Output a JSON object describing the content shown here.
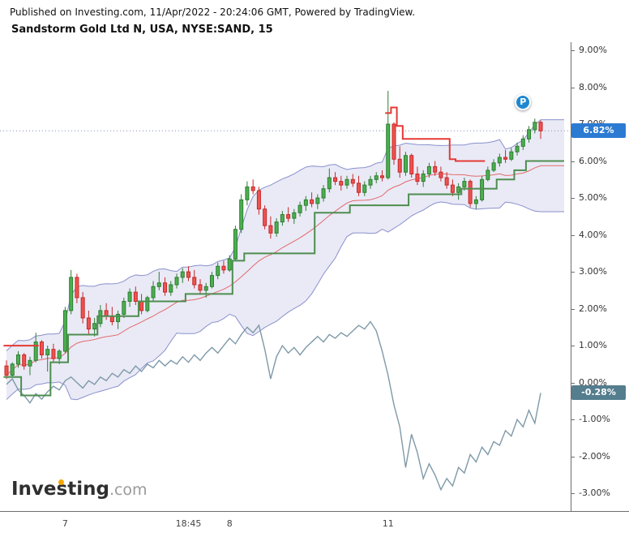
{
  "header": {
    "published": "Published on Investing.com, 11/Apr/2022 - 20:24:06 GMT, Powered by TradingView.",
    "title": "Sandstorm Gold Ltd N, USA, NYSE:SAND, 15"
  },
  "watermark": {
    "brand": "Investing",
    "suffix": ".com",
    "dot_color": "#f7a600"
  },
  "badges": {
    "price": {
      "label": "6.82%",
      "value": 6.82,
      "color": "#2c7bd3"
    },
    "comparison": {
      "label": "-0.28%",
      "value": -0.28,
      "color": "#547d8e"
    }
  },
  "marker": {
    "label": "P",
    "index": 88,
    "value": 7.6,
    "color": "#1e88d0"
  },
  "colors": {
    "up_fill": "#4caf50",
    "up_border": "#2e7d32",
    "down_fill": "#ef5350",
    "down_border": "#c62828",
    "band_fill": "rgba(120,126,200,0.16)",
    "band_line": "#8a90cc",
    "bb_mid": "#e26a6a",
    "dotted": "#7d8db0"
  },
  "chart_data": {
    "type": "candlestick",
    "title": "Sandstorm Gold Ltd N, USA, NYSE:SAND, 15",
    "symbol": "NYSE:SAND",
    "interval_minutes": 15,
    "y_unit": "%",
    "ylim": [
      -3.48,
      9.22
    ],
    "grid": false,
    "extension_bars": 4,
    "y_ticks": [
      {
        "label": "9.00%",
        "value": 9
      },
      {
        "label": "8.00%",
        "value": 8
      },
      {
        "label": "7.00%",
        "value": 7
      },
      {
        "label": "6.00%",
        "value": 6
      },
      {
        "label": "5.00%",
        "value": 5
      },
      {
        "label": "4.00%",
        "value": 4
      },
      {
        "label": "3.00%",
        "value": 3
      },
      {
        "label": "2.00%",
        "value": 2
      },
      {
        "label": "1.00%",
        "value": 1
      },
      {
        "label": "0.00%",
        "value": 0
      },
      {
        "label": "-1.00%",
        "value": -1
      },
      {
        "label": "-2.00%",
        "value": -2
      },
      {
        "label": "-3.00%",
        "value": -3
      }
    ],
    "x_ticks": [
      {
        "label": "7",
        "index": 10
      },
      {
        "label": "18:45",
        "index": 31
      },
      {
        "label": "8",
        "index": 38
      },
      {
        "label": "11",
        "index": 65
      }
    ],
    "candles": [
      [
        0.45,
        0.6,
        0.1,
        0.2
      ],
      [
        0.2,
        0.55,
        0.15,
        0.5
      ],
      [
        0.5,
        0.85,
        0.4,
        0.75
      ],
      [
        0.75,
        0.8,
        0.35,
        0.45
      ],
      [
        0.45,
        0.7,
        0.2,
        0.6
      ],
      [
        0.6,
        1.35,
        0.55,
        1.1
      ],
      [
        1.1,
        1.15,
        0.65,
        0.75
      ],
      [
        0.75,
        1.0,
        0.3,
        0.9
      ],
      [
        0.9,
        1.05,
        0.55,
        0.65
      ],
      [
        0.65,
        0.9,
        0.5,
        0.85
      ],
      [
        0.85,
        2.05,
        0.8,
        1.95
      ],
      [
        1.95,
        3.05,
        1.85,
        2.85
      ],
      [
        2.85,
        2.95,
        2.15,
        2.3
      ],
      [
        2.3,
        2.45,
        1.6,
        1.75
      ],
      [
        1.75,
        1.95,
        1.3,
        1.45
      ],
      [
        1.45,
        1.75,
        1.25,
        1.6
      ],
      [
        1.6,
        2.1,
        1.5,
        1.95
      ],
      [
        1.95,
        2.15,
        1.7,
        1.8
      ],
      [
        1.8,
        2.05,
        1.55,
        1.65
      ],
      [
        1.65,
        1.95,
        1.45,
        1.85
      ],
      [
        1.85,
        2.3,
        1.75,
        2.2
      ],
      [
        2.2,
        2.55,
        2.05,
        2.45
      ],
      [
        2.45,
        2.6,
        2.1,
        2.2
      ],
      [
        2.2,
        2.4,
        1.85,
        1.95
      ],
      [
        1.95,
        2.35,
        1.9,
        2.3
      ],
      [
        2.3,
        2.75,
        2.2,
        2.6
      ],
      [
        2.6,
        3.0,
        2.5,
        2.7
      ],
      [
        2.7,
        2.85,
        2.35,
        2.45
      ],
      [
        2.45,
        2.75,
        2.35,
        2.65
      ],
      [
        2.65,
        2.95,
        2.55,
        2.85
      ],
      [
        2.85,
        3.1,
        2.7,
        3.0
      ],
      [
        3.0,
        3.15,
        2.75,
        2.85
      ],
      [
        2.85,
        3.05,
        2.55,
        2.65
      ],
      [
        2.65,
        2.8,
        2.4,
        2.5
      ],
      [
        2.5,
        2.7,
        2.3,
        2.6
      ],
      [
        2.6,
        3.0,
        2.55,
        2.9
      ],
      [
        2.9,
        3.25,
        2.8,
        3.15
      ],
      [
        3.15,
        3.3,
        2.95,
        3.05
      ],
      [
        3.05,
        3.45,
        3.0,
        3.35
      ],
      [
        3.35,
        4.25,
        3.3,
        4.15
      ],
      [
        4.15,
        5.1,
        4.05,
        4.95
      ],
      [
        4.95,
        5.45,
        4.8,
        5.3
      ],
      [
        5.3,
        5.5,
        5.1,
        5.2
      ],
      [
        5.2,
        5.3,
        4.55,
        4.7
      ],
      [
        4.7,
        4.8,
        4.15,
        4.25
      ],
      [
        4.25,
        4.5,
        3.9,
        4.05
      ],
      [
        4.05,
        4.45,
        3.95,
        4.35
      ],
      [
        4.35,
        4.65,
        4.25,
        4.55
      ],
      [
        4.55,
        4.75,
        4.35,
        4.45
      ],
      [
        4.45,
        4.7,
        4.3,
        4.6
      ],
      [
        4.6,
        4.9,
        4.5,
        4.8
      ],
      [
        4.8,
        5.05,
        4.65,
        4.95
      ],
      [
        4.95,
        5.15,
        4.75,
        4.85
      ],
      [
        4.85,
        5.1,
        4.7,
        5.0
      ],
      [
        5.0,
        5.35,
        4.9,
        5.25
      ],
      [
        5.25,
        5.8,
        5.15,
        5.55
      ],
      [
        5.55,
        5.7,
        5.35,
        5.45
      ],
      [
        5.45,
        5.6,
        5.2,
        5.35
      ],
      [
        5.35,
        5.6,
        5.25,
        5.5
      ],
      [
        5.5,
        5.65,
        5.3,
        5.4
      ],
      [
        5.4,
        5.6,
        5.05,
        5.15
      ],
      [
        5.15,
        5.45,
        5.05,
        5.35
      ],
      [
        5.35,
        5.6,
        5.25,
        5.5
      ],
      [
        5.5,
        5.7,
        5.4,
        5.6
      ],
      [
        5.6,
        5.75,
        5.45,
        5.55
      ],
      [
        5.55,
        7.9,
        5.5,
        7.0
      ],
      [
        7.0,
        7.05,
        5.9,
        6.05
      ],
      [
        6.05,
        6.4,
        5.55,
        5.7
      ],
      [
        5.7,
        6.25,
        5.6,
        6.15
      ],
      [
        6.15,
        6.2,
        5.55,
        5.65
      ],
      [
        5.65,
        5.85,
        5.35,
        5.45
      ],
      [
        5.45,
        5.75,
        5.3,
        5.65
      ],
      [
        5.65,
        5.95,
        5.55,
        5.85
      ],
      [
        5.85,
        6.0,
        5.6,
        5.7
      ],
      [
        5.7,
        5.85,
        5.45,
        5.55
      ],
      [
        5.55,
        5.7,
        5.25,
        5.35
      ],
      [
        5.35,
        5.5,
        5.05,
        5.15
      ],
      [
        5.15,
        5.4,
        4.95,
        5.3
      ],
      [
        5.3,
        5.55,
        5.2,
        5.45
      ],
      [
        5.45,
        5.5,
        4.75,
        4.85
      ],
      [
        4.85,
        5.05,
        4.7,
        4.95
      ],
      [
        4.95,
        5.6,
        4.9,
        5.5
      ],
      [
        5.5,
        5.85,
        5.45,
        5.75
      ],
      [
        5.75,
        6.05,
        5.7,
        5.95
      ],
      [
        5.95,
        6.2,
        5.85,
        6.1
      ],
      [
        6.1,
        6.3,
        5.95,
        6.05
      ],
      [
        6.05,
        6.35,
        6.0,
        6.25
      ],
      [
        6.25,
        6.5,
        6.15,
        6.4
      ],
      [
        6.4,
        6.7,
        6.3,
        6.6
      ],
      [
        6.6,
        6.95,
        6.5,
        6.85
      ],
      [
        6.85,
        7.15,
        6.75,
        7.05
      ],
      [
        7.05,
        7.1,
        6.6,
        6.82
      ]
    ],
    "overlays": {
      "bollinger": {
        "period": 20,
        "mult": 2
      },
      "dotted_level": 6.82,
      "trail_green": {
        "color": "#4e8d50",
        "values": [
          0.15,
          0.15,
          0.15,
          -0.35,
          -0.35,
          -0.35,
          -0.35,
          -0.35,
          0.55,
          0.55,
          0.55,
          1.3,
          1.3,
          1.3,
          1.3,
          1.3,
          1.8,
          1.8,
          1.8,
          1.8,
          1.8,
          1.8,
          1.8,
          2.2,
          2.2,
          2.2,
          2.2,
          2.2,
          2.2,
          2.2,
          2.2,
          2.4,
          2.4,
          2.4,
          2.4,
          2.4,
          2.4,
          2.4,
          2.4,
          3.3,
          3.3,
          3.5,
          3.5,
          3.5,
          3.5,
          3.5,
          3.5,
          3.5,
          3.5,
          3.5,
          3.5,
          3.5,
          3.5,
          4.6,
          4.6,
          4.6,
          4.6,
          4.6,
          4.6,
          4.8,
          4.8,
          4.8,
          4.8,
          4.8,
          4.8,
          4.8,
          4.8,
          4.8,
          4.8,
          5.1,
          5.1,
          5.1,
          5.1,
          5.1,
          5.1,
          5.1,
          5.1,
          5.1,
          5.25,
          5.25,
          5.25,
          5.25,
          5.25,
          5.25,
          5.5,
          5.5,
          5.5,
          5.75,
          5.75,
          6.0,
          6.0,
          6.0
        ]
      },
      "stop_red": {
        "color": "#e53935",
        "values": [
          1.0,
          1.0,
          1.0,
          1.0,
          1.0,
          1.0,
          null,
          null,
          null,
          null,
          null,
          null,
          null,
          null,
          null,
          null,
          null,
          null,
          null,
          null,
          null,
          null,
          null,
          null,
          null,
          null,
          null,
          null,
          null,
          null,
          null,
          null,
          null,
          null,
          null,
          null,
          null,
          null,
          null,
          null,
          null,
          null,
          null,
          null,
          null,
          null,
          null,
          null,
          null,
          null,
          null,
          null,
          null,
          null,
          null,
          null,
          null,
          null,
          null,
          null,
          null,
          null,
          null,
          null,
          null,
          7.3,
          7.45,
          6.95,
          6.6,
          6.6,
          6.6,
          6.6,
          6.6,
          6.6,
          6.6,
          6.6,
          6.05,
          6.0,
          6.0,
          6.0,
          6.0,
          6.0,
          null,
          null,
          null,
          null,
          null,
          null,
          null,
          null,
          null,
          null
        ]
      },
      "comparison": {
        "color": "#7e99a8",
        "values": [
          -0.05,
          0.1,
          -0.2,
          -0.35,
          -0.55,
          -0.3,
          -0.45,
          -0.25,
          -0.1,
          -0.2,
          0.05,
          0.15,
          0.0,
          -0.15,
          0.05,
          -0.05,
          0.15,
          0.05,
          0.25,
          0.15,
          0.35,
          0.25,
          0.45,
          0.3,
          0.5,
          0.4,
          0.6,
          0.45,
          0.6,
          0.5,
          0.7,
          0.55,
          0.75,
          0.6,
          0.8,
          0.95,
          0.8,
          1.0,
          1.2,
          1.05,
          1.3,
          1.5,
          1.35,
          1.55,
          0.9,
          0.1,
          0.7,
          1.0,
          0.8,
          0.95,
          0.75,
          0.95,
          1.1,
          1.25,
          1.1,
          1.3,
          1.2,
          1.35,
          1.25,
          1.4,
          1.55,
          1.45,
          1.65,
          1.4,
          0.85,
          0.2,
          -0.6,
          -1.2,
          -2.3,
          -1.4,
          -1.9,
          -2.6,
          -2.2,
          -2.5,
          -2.9,
          -2.6,
          -2.8,
          -2.3,
          -2.45,
          -1.95,
          -2.15,
          -1.75,
          -1.95,
          -1.6,
          -1.7,
          -1.3,
          -1.45,
          -1.0,
          -1.2,
          -0.75,
          -1.1,
          -0.28
        ]
      }
    }
  }
}
